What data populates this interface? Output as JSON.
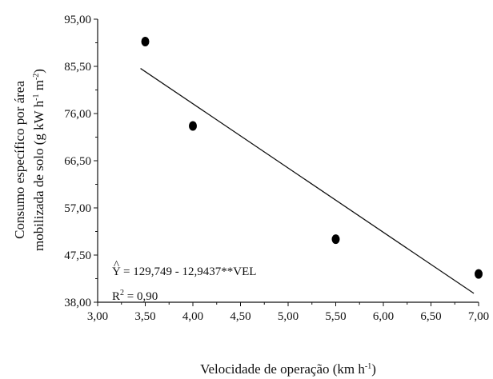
{
  "chart_data": {
    "type": "scatter",
    "title": "",
    "xlabel": "Velocidade de operação (km h-1)",
    "xlabel_parts": [
      "Velocidade de operação (km h",
      "-1",
      ")"
    ],
    "ylabel_line1": "Consumo específico por área",
    "ylabel_line2_parts": [
      "mobilizada de solo (g kW h",
      "-1",
      " m",
      "-2",
      ")"
    ],
    "xlim": [
      3.0,
      7.0
    ],
    "ylim": [
      38.0,
      95.0
    ],
    "x_ticks": [
      3.0,
      3.5,
      4.0,
      4.5,
      5.0,
      5.5,
      6.0,
      6.5,
      7.0
    ],
    "x_tick_labels": [
      "3,00",
      "3,50",
      "4,00",
      "4,50",
      "5,00",
      "5,50",
      "6,00",
      "6,50",
      "7,00"
    ],
    "y_ticks": [
      38.0,
      47.5,
      57.0,
      66.5,
      76.0,
      85.5,
      95.0
    ],
    "y_tick_labels": [
      "38,00",
      "47,50",
      "57,00",
      "66,50",
      "76,00",
      "85,50",
      "95,00"
    ],
    "points": [
      {
        "x": 3.5,
        "y": 90.5
      },
      {
        "x": 4.0,
        "y": 73.5
      },
      {
        "x": 5.5,
        "y": 50.7
      },
      {
        "x": 7.0,
        "y": 43.7
      }
    ],
    "regression": {
      "intercept": 129.749,
      "slope": -12.9437,
      "x_range": [
        3.45,
        6.95
      ]
    },
    "equation_text": "Y = 129,749 - 12,9437**VEL",
    "equation_hat": "^",
    "r2_parts": [
      "R",
      "2",
      " = 0,90"
    ],
    "grid": false,
    "legend": "none"
  }
}
